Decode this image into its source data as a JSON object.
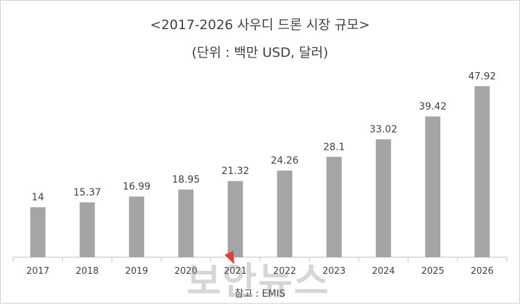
{
  "chart_data": {
    "type": "bar",
    "title": "<2017-2026 사우디 드론 시장 규모>",
    "subtitle": "(단위 : 백만 USD, 달러)",
    "categories": [
      "2017",
      "2018",
      "2019",
      "2020",
      "2021",
      "2022",
      "2023",
      "2024",
      "2025",
      "2026"
    ],
    "values": [
      14,
      15.37,
      16.99,
      18.95,
      21.32,
      24.26,
      28.1,
      33.02,
      39.42,
      47.92
    ],
    "data_labels": [
      "14",
      "15.37",
      "16.99",
      "18.95",
      "21.32",
      "24.26",
      "28.1",
      "33.02",
      "39.42",
      "47.92"
    ],
    "ylim": [
      0,
      54
    ],
    "grid": false,
    "legend": "none",
    "bar_color": "#a5a5a5",
    "axis_color": "#bfbfbf"
  },
  "source": "참고 : EMIS",
  "watermark": "보안뉴스"
}
